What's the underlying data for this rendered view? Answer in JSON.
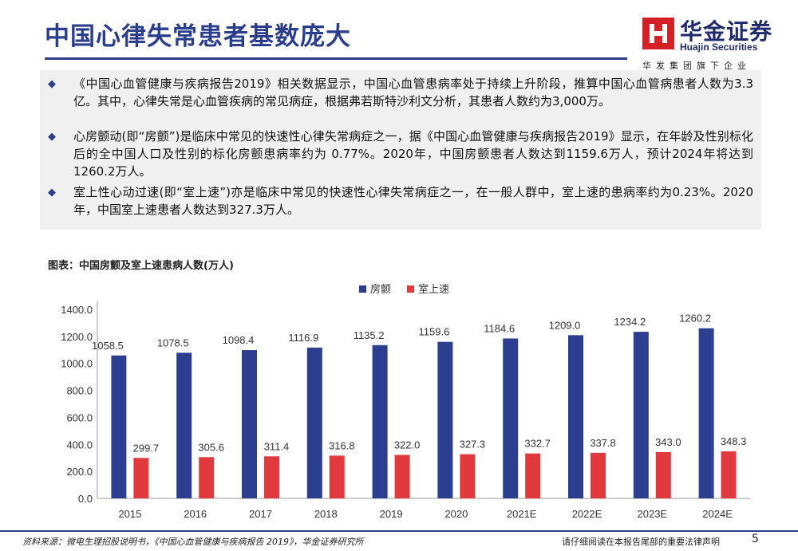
{
  "header": {
    "title": "中国心律失常患者基数庞大",
    "logo_cn": "华金证券",
    "logo_en": "Huajin Securities",
    "logo_sub": "华发集团旗下企业"
  },
  "bullets": [
    "《中国心血管健康与疾病报告2019》相关数据显示，中国心血管患病率处于持续上升阶段，推算中国心血管病患者人数为3.3亿。其中，心律失常是心血管疾病的常见病症，根据弗若斯特沙利文分析，其患者人数约为3,000万。",
    "心房颤动(即“房颤”)是临床中常见的快速性心律失常病症之一，据《中国心血管健康与疾病报告2019》显示，在年龄及性别标化后的全中国人口及性别的标化房颤患病率约为 0.77%。2020年，中国房颤患者人数达到1159.6万人，预计2024年将达到1260.2万人。",
    "室上性心动过速(即“室上速”)亦是临床中常见的快速性心律失常病症之一，在一般人群中，室上速的患病率约为0.23%。2020年，中国室上速患者人数达到327.3万人。"
  ],
  "chart_title": "图表：中国房颤及室上速患病人数(万人)",
  "chart_data": {
    "type": "bar",
    "categories": [
      "2015",
      "2016",
      "2017",
      "2018",
      "2019",
      "2020",
      "2021E",
      "2022E",
      "2023E",
      "2024E"
    ],
    "series": [
      {
        "name": "房颤",
        "color": "#2b3e8f",
        "values": [
          1058.5,
          1078.5,
          1098.4,
          1116.9,
          1135.2,
          1159.6,
          1184.6,
          1209.0,
          1234.2,
          1260.2
        ]
      },
      {
        "name": "室上速",
        "color": "#e03a3e",
        "values": [
          299.7,
          305.6,
          311.4,
          316.8,
          322.0,
          327.3,
          332.7,
          337.8,
          343.0,
          348.3
        ]
      }
    ],
    "ylim": [
      0,
      1400
    ],
    "ytick_step": 200,
    "legend": "top-center"
  },
  "footer": {
    "source": "资料来源：微电生理招股说明书，《中国心血管健康与疾病报告 2019》，华金证券研究所",
    "disclaimer": "请仔细阅读在本报告尾部的重要法律声明",
    "page": "5"
  },
  "colors": {
    "brand_blue": "#2a3e8c",
    "brand_red": "#d42027"
  }
}
